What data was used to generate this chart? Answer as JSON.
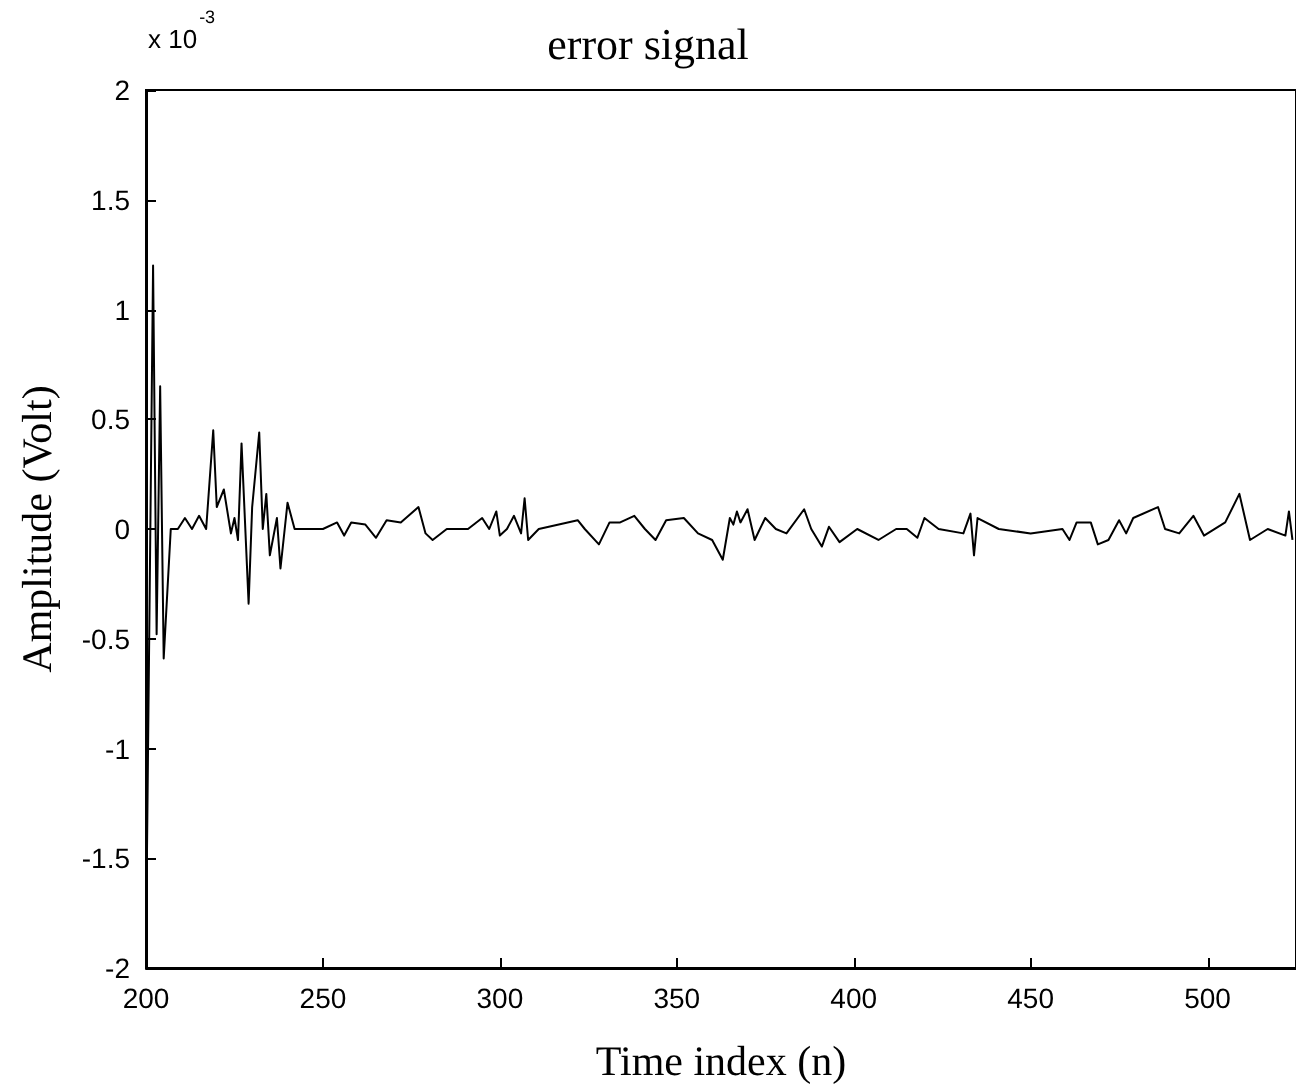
{
  "chart_data": {
    "type": "line",
    "title": "error signal",
    "xlabel": "Time index (n)",
    "ylabel": "Amplitude (Volt)",
    "annotations": [
      "x 10$^{-3}$"
    ],
    "x": [
      200,
      202,
      203,
      204,
      205,
      207,
      209,
      211,
      213,
      215,
      217,
      219,
      220,
      222,
      224,
      225,
      226,
      227,
      229,
      230,
      232,
      233,
      234,
      235,
      237,
      238,
      240,
      242,
      250,
      254,
      256,
      258,
      262,
      265,
      268,
      272,
      277,
      279,
      281,
      285,
      291,
      295,
      297,
      299,
      300,
      302,
      304,
      306,
      307,
      308,
      311,
      322,
      324,
      328,
      331,
      334,
      338,
      341,
      344,
      347,
      352,
      356,
      360,
      363,
      365,
      366,
      367,
      368,
      370,
      372,
      375,
      378,
      381,
      386,
      388,
      391,
      393,
      396,
      401,
      407,
      412,
      415,
      418,
      420,
      424,
      431,
      433,
      434,
      435,
      441,
      450,
      459,
      461,
      463,
      467,
      469,
      472,
      475,
      477,
      479,
      486,
      488,
      492,
      496,
      499,
      505,
      509,
      512,
      517,
      522,
      523,
      524
    ],
    "series": [
      {
        "color": "#000000",
        "values": [
          -1.9,
          1.2,
          -0.48,
          0.65,
          -0.59,
          0,
          0,
          0.05,
          0,
          0.06,
          0,
          0.45,
          0.1,
          0.18,
          -0.02,
          0.05,
          -0.05,
          0.39,
          -0.34,
          0.1,
          0.44,
          0,
          0.16,
          -0.12,
          0.05,
          -0.18,
          0.12,
          0,
          0,
          0.03,
          -0.03,
          0.03,
          0.02,
          -0.04,
          0.04,
          0.03,
          0.1,
          -0.02,
          -0.05,
          0,
          0,
          0.05,
          0,
          0.08,
          -0.03,
          0,
          0.06,
          -0.02,
          0.14,
          -0.05,
          0,
          0.04,
          0,
          -0.07,
          0.03,
          0.03,
          0.06,
          0,
          -0.05,
          0.04,
          0.05,
          -0.02,
          -0.05,
          -0.14,
          0.05,
          0.02,
          0.08,
          0.03,
          0.09,
          -0.05,
          0.05,
          0,
          -0.02,
          0.09,
          0,
          -0.08,
          0.01,
          -0.06,
          0,
          -0.05,
          0,
          0,
          -0.04,
          0.05,
          0,
          -0.02,
          0.07,
          -0.12,
          0.05,
          0,
          -0.02,
          0,
          -0.05,
          0.03,
          0.03,
          -0.07,
          -0.05,
          0.04,
          -0.02,
          0.05,
          0.1,
          0,
          -0.02,
          0.06,
          -0.03,
          0.03,
          0.16,
          -0.05,
          0,
          -0.03,
          0.08,
          -0.05
        ]
      }
    ],
    "xlim": [
      200,
      525
    ],
    "xticks": [
      200,
      250,
      300,
      350,
      400,
      450,
      500
    ],
    "ylim": [
      -2,
      2
    ],
    "yticks": [
      -2,
      -1.5,
      -1,
      -0.5,
      0,
      0.5,
      1,
      1.5,
      2
    ],
    "grid": false,
    "marker": "none",
    "line_style": "solid"
  }
}
